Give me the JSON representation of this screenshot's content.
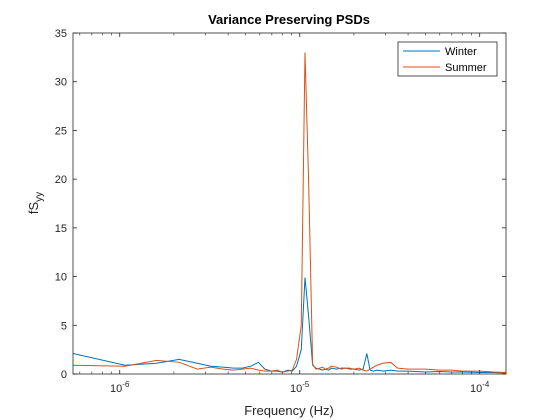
{
  "chart_data": {
    "type": "line",
    "title": "Variance Preserving PSDs",
    "xlabel": "Frequency (Hz)",
    "ylabel_main": "fS",
    "ylabel_sub": "yy",
    "xscale": "log",
    "xlim": [
      5.5e-07,
      0.00014
    ],
    "ylim": [
      0,
      35
    ],
    "yticks": [
      0,
      5,
      10,
      15,
      20,
      25,
      30,
      35
    ],
    "ytick_labels": [
      "0",
      "5",
      "10",
      "15",
      "20",
      "25",
      "30",
      "35"
    ],
    "xticks": [
      1e-06,
      1e-05,
      0.0001
    ],
    "xtick_labels": [
      {
        "base": "10",
        "exp": "-6"
      },
      {
        "base": "10",
        "exp": "-5"
      },
      {
        "base": "10",
        "exp": "-4"
      }
    ],
    "legend_position": "top-right",
    "series": [
      {
        "name": "Winter",
        "color": "#0072BD",
        "x": [
          5.5e-07,
          1.07e-06,
          1.6e-06,
          2.14e-06,
          2.7e-06,
          3.2e-06,
          3.75e-06,
          4.3e-06,
          4.8e-06,
          5.35e-06,
          5.9e-06,
          6.4e-06,
          6.96e-06,
          7.5e-06,
          8e-06,
          8.6e-06,
          9.1e-06,
          9.6e-06,
          1.02e-05,
          1.07e-05,
          1.12e-05,
          1.18e-05,
          1.23e-05,
          1.29e-05,
          1.34e-05,
          1.39e-05,
          1.45e-05,
          1.5e-05,
          1.6e-05,
          1.7e-05,
          1.8e-05,
          1.9e-05,
          2e-05,
          2.14e-05,
          2.25e-05,
          2.36e-05,
          2.46e-05,
          2.57e-05,
          2.68e-05,
          2.9e-05,
          3.2e-05,
          3.5e-05,
          4e-05,
          5e-05,
          6e-05,
          7e-05,
          8e-05,
          0.0001,
          0.00012,
          0.00014
        ],
        "y": [
          2.1,
          0.9,
          1.1,
          1.5,
          1.1,
          0.8,
          0.7,
          0.6,
          0.6,
          0.8,
          1.2,
          0.5,
          0.3,
          0.3,
          0.2,
          0.4,
          0.3,
          0.8,
          2.5,
          9.9,
          6.0,
          0.9,
          0.6,
          0.5,
          0.4,
          0.5,
          0.4,
          0.6,
          0.5,
          0.6,
          0.6,
          0.5,
          0.5,
          0.4,
          0.5,
          2.1,
          0.4,
          0.3,
          0.4,
          0.3,
          0.4,
          0.3,
          0.3,
          0.2,
          0.25,
          0.2,
          0.2,
          0.15,
          0.15,
          0.1
        ]
      },
      {
        "name": "Summer",
        "color": "#D95319",
        "x": [
          5.5e-07,
          1.07e-06,
          1.6e-06,
          2.14e-06,
          2.7e-06,
          3.2e-06,
          3.75e-06,
          4.3e-06,
          4.8e-06,
          5.35e-06,
          5.9e-06,
          6.4e-06,
          6.96e-06,
          7.5e-06,
          8e-06,
          8.6e-06,
          9.1e-06,
          9.6e-06,
          1.02e-05,
          1.07e-05,
          1.12e-05,
          1.18e-05,
          1.23e-05,
          1.29e-05,
          1.34e-05,
          1.39e-05,
          1.45e-05,
          1.5e-05,
          1.6e-05,
          1.7e-05,
          1.8e-05,
          1.9e-05,
          2e-05,
          2.14e-05,
          2.25e-05,
          2.36e-05,
          2.46e-05,
          2.57e-05,
          2.68e-05,
          2.9e-05,
          3.2e-05,
          3.5e-05,
          4e-05,
          5e-05,
          6e-05,
          7e-05,
          8e-05,
          0.0001,
          0.00012,
          0.00014
        ],
        "y": [
          0.9,
          0.8,
          1.4,
          1.2,
          0.5,
          0.7,
          0.5,
          0.4,
          0.5,
          0.6,
          0.4,
          0.3,
          0.3,
          0.4,
          0.2,
          0.3,
          0.4,
          1.5,
          5.0,
          33.0,
          20.0,
          1.0,
          0.5,
          0.6,
          0.7,
          0.5,
          0.6,
          0.8,
          0.7,
          0.5,
          0.6,
          0.6,
          0.5,
          0.6,
          0.4,
          0.3,
          0.5,
          0.7,
          0.9,
          1.1,
          1.2,
          0.6,
          0.5,
          0.5,
          0.4,
          0.4,
          0.3,
          0.3,
          0.2,
          0.15
        ]
      }
    ]
  }
}
